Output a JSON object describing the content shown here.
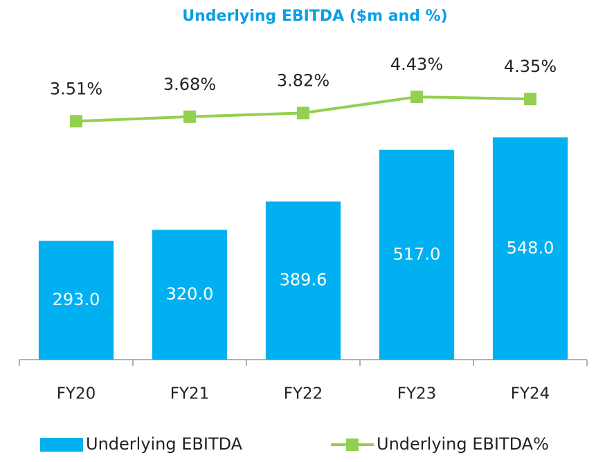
{
  "chart_data": {
    "type": "bar-line",
    "title": "Underlying EBITDA ($m and %)",
    "categories": [
      "FY20",
      "FY21",
      "FY22",
      "FY23",
      "FY24"
    ],
    "series": [
      {
        "name": "Underlying EBITDA",
        "type": "bar",
        "color": "#00b0f0",
        "values": [
          293,
          320,
          389.6,
          517,
          548
        ],
        "value_labels": [
          "293.0",
          "320.0",
          "389.6",
          "517.0",
          "548.0"
        ]
      },
      {
        "name": "Underlying EBITDA%",
        "type": "line",
        "axis": "y2",
        "color": "#92d050",
        "values": [
          3.51,
          3.68,
          3.82,
          4.43,
          4.35
        ],
        "value_labels": [
          "3.51%",
          "3.68%",
          "3.82%",
          "4.43%",
          "4.35%"
        ]
      }
    ],
    "ylim": [
      0,
      750
    ],
    "y2lim": [
      -5.5,
      6
    ],
    "legend": "bottom"
  }
}
